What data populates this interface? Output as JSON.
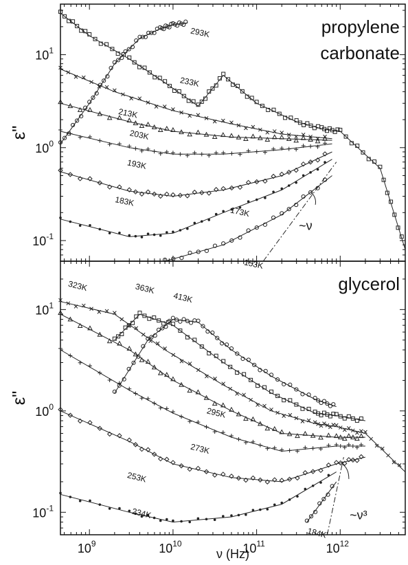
{
  "chart_data": [
    {
      "type": "scatter",
      "panel_label": "propylene carbonate",
      "panel_label_lines": [
        "propylene",
        "carbonate"
      ],
      "xscale": "log",
      "yscale": "log",
      "xlim": [
        450000000.0,
        6000000000000.0
      ],
      "ylim": [
        0.06,
        35
      ],
      "ylabel": "ε\"",
      "x_ticks": [
        "10^9",
        "10^10",
        "10^11",
        "10^12"
      ],
      "y_ticks": [
        "10^-1",
        "10^0",
        "10^1"
      ],
      "y_tick_values": [
        0.1,
        1,
        10
      ],
      "series": [
        {
          "name": "293K",
          "points": [
            [
              450000000.0,
              1.1
            ],
            [
              1000000000.0,
              3.0
            ],
            [
              2000000000.0,
              8.0
            ],
            [
              4000000000.0,
              15
            ],
            [
              7000000000.0,
              19
            ],
            [
              10000000000.0,
              21
            ],
            [
              15000000000.0,
              22
            ]
          ]
        },
        {
          "name": "233K",
          "points": [
            [
              450000000.0,
              28
            ],
            [
              1000000000.0,
              16
            ],
            [
              3000000000.0,
              9
            ],
            [
              8000000000.0,
              5
            ],
            [
              20000000000.0,
              2.8
            ],
            [
              40000000000.0,
              6
            ],
            [
              100000000000.0,
              3
            ],
            [
              300000000000.0,
              1.9
            ],
            [
              600000000000.0,
              1.6
            ],
            [
              1000000000000.0,
              1.5
            ],
            [
              3000000000000.0,
              0.6
            ],
            [
              6000000000000.0,
              0.08
            ]
          ]
        },
        {
          "name": "213K",
          "points": [
            [
              450000000.0,
              7
            ],
            [
              2000000000.0,
              4
            ],
            [
              10000000000.0,
              2.5
            ],
            [
              50000000000.0,
              1.8
            ],
            [
              200000000000.0,
              1.4
            ],
            [
              800000000000.0,
              1.25
            ]
          ]
        },
        {
          "name": "203K",
          "points": [
            [
              450000000.0,
              3.0
            ],
            [
              3000000000.0,
              1.9
            ],
            [
              10000000000.0,
              1.5
            ],
            [
              50000000000.0,
              1.3
            ],
            [
              200000000000.0,
              1.25
            ],
            [
              800000000000.0,
              1.2
            ]
          ]
        },
        {
          "name": "193K",
          "points": [
            [
              450000000.0,
              1.5
            ],
            [
              3000000000.0,
              1.0
            ],
            [
              10000000000.0,
              0.85
            ],
            [
              40000000000.0,
              0.85
            ],
            [
              200000000000.0,
              0.95
            ],
            [
              800000000000.0,
              1.1
            ]
          ]
        },
        {
          "name": "183K",
          "points": [
            [
              450000000.0,
              0.55
            ],
            [
              3000000000.0,
              0.34
            ],
            [
              10000000000.0,
              0.3
            ],
            [
              40000000000.0,
              0.35
            ],
            [
              200000000000.0,
              0.5
            ],
            [
              800000000000.0,
              0.9
            ]
          ]
        },
        {
          "name": "173K",
          "points": [
            [
              450000000.0,
              0.17
            ],
            [
              3000000000.0,
              0.11
            ],
            [
              10000000000.0,
              0.12
            ],
            [
              40000000000.0,
              0.2
            ],
            [
              200000000000.0,
              0.35
            ],
            [
              800000000000.0,
              0.75
            ]
          ]
        },
        {
          "name": "153K",
          "points": [
            [
              8000000000.0,
              0.06
            ],
            [
              40000000000.0,
              0.09
            ],
            [
              200000000000.0,
              0.19
            ],
            [
              800000000000.0,
              0.5
            ]
          ]
        }
      ],
      "annotations": [
        "~ν"
      ]
    },
    {
      "type": "scatter",
      "panel_label": "glycerol",
      "xscale": "log",
      "yscale": "log",
      "xlim": [
        450000000.0,
        6000000000000.0
      ],
      "ylim": [
        0.06,
        30
      ],
      "ylabel": "ε\"",
      "xlabel": "ν (Hz)",
      "x_ticks": [
        "10^9",
        "10^10",
        "10^11",
        "10^12"
      ],
      "y_ticks": [
        "10^-1",
        "10^0",
        "10^1"
      ],
      "y_tick_values": [
        0.1,
        1,
        10
      ],
      "series": [
        {
          "name": "413K",
          "points": [
            [
              2000000000.0,
              1.5
            ],
            [
              5000000000.0,
              5
            ],
            [
              10000000000.0,
              8
            ],
            [
              20000000000.0,
              7.5
            ],
            [
              50000000000.0,
              4
            ],
            [
              150000000000.0,
              2.2
            ],
            [
              500000000000.0,
              1.3
            ],
            [
              900000000000.0,
              1.1
            ]
          ]
        },
        {
          "name": "363K",
          "points": [
            [
              2000000000.0,
              5
            ],
            [
              4000000000.0,
              9
            ],
            [
              10000000000.0,
              7
            ],
            [
              40000000000.0,
              3
            ],
            [
              150000000000.0,
              1.5
            ],
            [
              500000000000.0,
              0.95
            ],
            [
              900000000000.0,
              0.9
            ],
            [
              2000000000000.0,
              0.8
            ]
          ]
        },
        {
          "name": "323K",
          "points": [
            [
              450000000.0,
              12
            ],
            [
              2000000000.0,
              9
            ],
            [
              8000000000.0,
              4
            ],
            [
              40000000000.0,
              1.8
            ],
            [
              150000000000.0,
              1.0
            ],
            [
              500000000000.0,
              0.75
            ],
            [
              900000000000.0,
              0.7
            ],
            [
              2000000000000.0,
              0.6
            ],
            [
              6000000000000.0,
              0.25
            ]
          ]
        },
        {
          "name": "295K",
          "points": [
            [
              450000000.0,
              9
            ],
            [
              3000000000.0,
              4
            ],
            [
              10000000000.0,
              2
            ],
            [
              50000000000.0,
              1.0
            ],
            [
              200000000000.0,
              0.6
            ],
            [
              900000000000.0,
              0.55
            ],
            [
              2000000000000.0,
              0.55
            ]
          ]
        },
        {
          "name": "273K",
          "points": [
            [
              450000000.0,
              4
            ],
            [
              3000000000.0,
              1.6
            ],
            [
              10000000000.0,
              0.95
            ],
            [
              50000000000.0,
              0.55
            ],
            [
              200000000000.0,
              0.4
            ],
            [
              900000000000.0,
              0.45
            ],
            [
              2000000000000.0,
              0.45
            ]
          ]
        },
        {
          "name": "253K",
          "points": [
            [
              450000000.0,
              1.0
            ],
            [
              3000000000.0,
              0.5
            ],
            [
              10000000000.0,
              0.3
            ],
            [
              50000000000.0,
              0.22
            ],
            [
              200000000000.0,
              0.2
            ],
            [
              900000000000.0,
              0.3
            ],
            [
              2000000000000.0,
              0.35
            ]
          ]
        },
        {
          "name": "234K",
          "points": [
            [
              450000000.0,
              0.15
            ],
            [
              3000000000.0,
              0.1
            ],
            [
              10000000000.0,
              0.08
            ],
            [
              50000000000.0,
              0.09
            ],
            [
              200000000000.0,
              0.12
            ],
            [
              900000000000.0,
              0.25
            ]
          ]
        },
        {
          "name": "184K",
          "points": [
            [
              400000000000.0,
              0.08
            ],
            [
              900000000000.0,
              0.2
            ]
          ]
        }
      ],
      "annotations": [
        "~ν³"
      ]
    }
  ]
}
